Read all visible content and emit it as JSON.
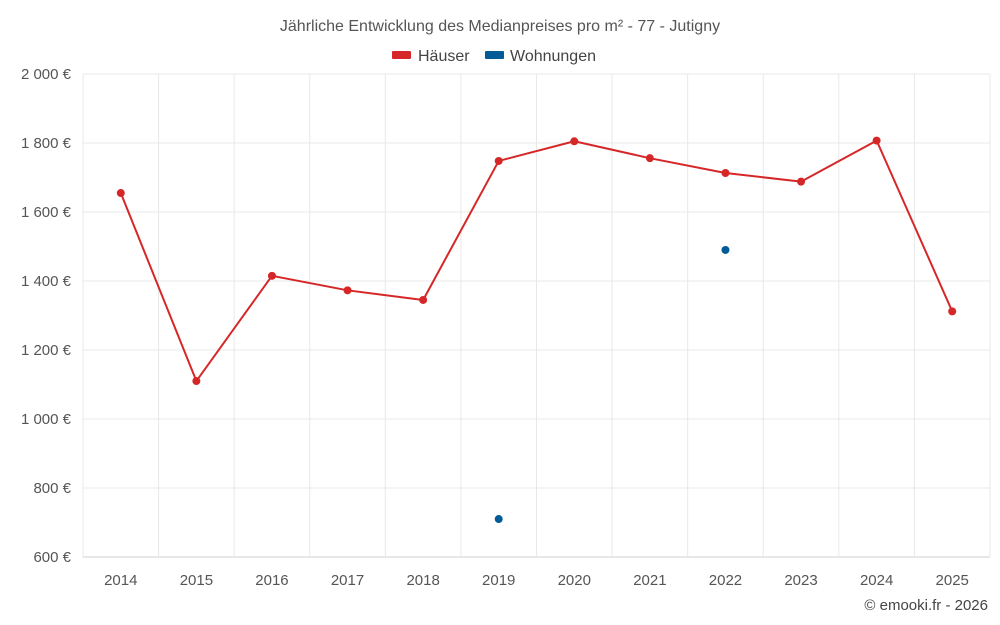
{
  "chart_data": {
    "type": "line",
    "title": "Jährliche Entwicklung des Medianpreises pro m² - 77 - Jutigny",
    "categories": [
      "2014",
      "2015",
      "2016",
      "2017",
      "2018",
      "2019",
      "2020",
      "2021",
      "2022",
      "2023",
      "2024",
      "2025"
    ],
    "series": [
      {
        "name": "Häuser",
        "color": "#d62728",
        "line": true,
        "values": [
          1655,
          1110,
          1415,
          1373,
          1345,
          1748,
          1805,
          1756,
          1713,
          1688,
          1807,
          1312
        ]
      },
      {
        "name": "Wohnungen",
        "color": "#005b96",
        "line": false,
        "values": [
          null,
          null,
          null,
          null,
          null,
          710,
          null,
          null,
          1490,
          null,
          null,
          null
        ]
      }
    ],
    "ylim": [
      600,
      2000
    ],
    "yticks": [
      600,
      800,
      1000,
      1200,
      1400,
      1600,
      1800,
      2000
    ],
    "ytick_labels": [
      "600 €",
      "800 €",
      "1 000 €",
      "1 200 €",
      "1 400 €",
      "1 600 €",
      "1 800 €",
      "2 000 €"
    ],
    "xlabel": "",
    "ylabel": "",
    "grid": true,
    "legend_position": "top-center"
  },
  "credit": "© emooki.fr - 2026"
}
